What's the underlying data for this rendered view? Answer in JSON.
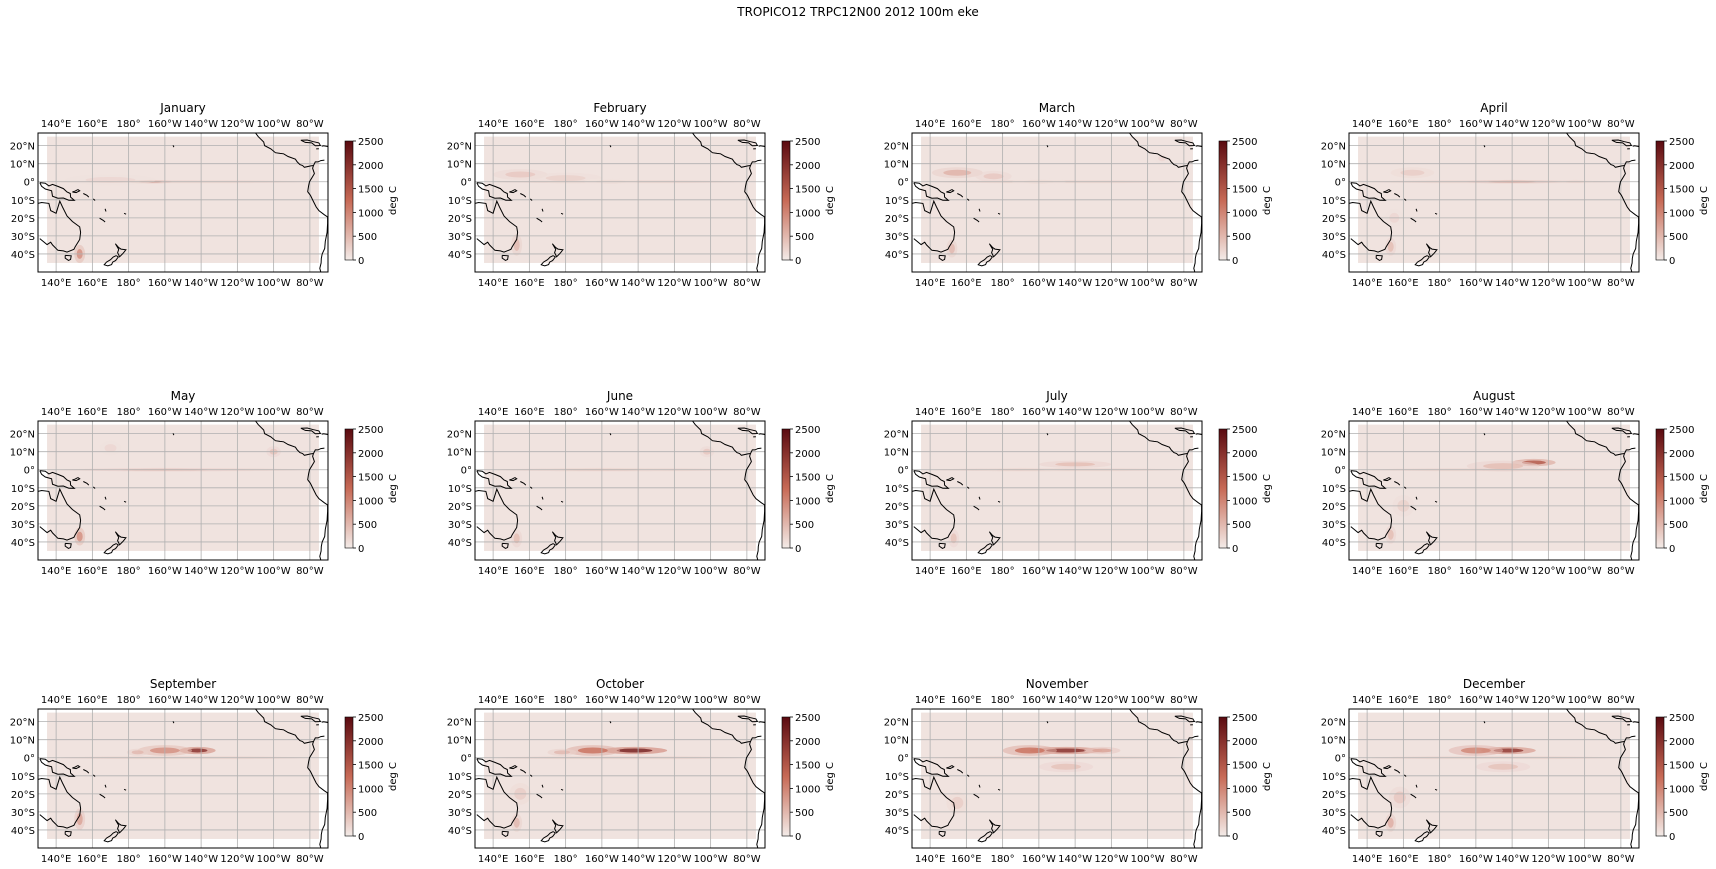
{
  "figure": {
    "suptitle": "TROPICO12 TRPC12N00 2012 100m eke"
  },
  "chart_data": {
    "type": "heatmap",
    "projection": "PlateCarree, central longitude 180",
    "lon_range": [
      130,
      290
    ],
    "lat_range": [
      -50,
      27
    ],
    "grid": true,
    "colormap": "white-to-dark-red (amp)",
    "colors": {
      "low": "#f3ebe8",
      "mid": "#c76a56",
      "high": "#5a0a10",
      "coast": "#000000",
      "grid": "#b0b0b0"
    },
    "top_tick_labels": [
      "140°E",
      "160°E",
      "180°",
      "160°W",
      "140°W",
      "120°W",
      "100°W",
      "80°W"
    ],
    "bottom_tick_labels": [
      "140°E",
      "160°E",
      "180°",
      "160°W",
      "140°W",
      "120°W",
      "100°W",
      "80°W"
    ],
    "lat_tick_labels": [
      "20°N",
      "10°N",
      "0°",
      "10°S",
      "20°S",
      "30°S",
      "40°S"
    ],
    "colorbar": {
      "label": "deg C",
      "min": 0,
      "max": 2500,
      "ticks": [
        "0",
        "500",
        "1000",
        "1500",
        "2000",
        "2500"
      ]
    },
    "panels": [
      {
        "title": "January",
        "blobs": [
          {
            "lon": 192,
            "lat": 0,
            "wlon": 12,
            "wlat": 1,
            "v": 700
          },
          {
            "lon": 170,
            "lat": 1,
            "wlon": 25,
            "wlat": 3,
            "v": 200
          },
          {
            "lon": 153,
            "lat": -40,
            "wlon": 3,
            "wlat": 5,
            "v": 900
          }
        ]
      },
      {
        "title": "February",
        "blobs": [
          {
            "lon": 155,
            "lat": 4,
            "wlon": 15,
            "wlat": 3,
            "v": 350
          },
          {
            "lon": 180,
            "lat": 2,
            "wlon": 20,
            "wlat": 3,
            "v": 250
          },
          {
            "lon": 205,
            "lat": 0,
            "wlon": 15,
            "wlat": 2,
            "v": 150
          },
          {
            "lon": 153,
            "lat": -35,
            "wlon": 3,
            "wlat": 6,
            "v": 500
          }
        ]
      },
      {
        "title": "March",
        "blobs": [
          {
            "lon": 155,
            "lat": 5,
            "wlon": 14,
            "wlat": 3,
            "v": 550
          },
          {
            "lon": 175,
            "lat": 3,
            "wlon": 10,
            "wlat": 3,
            "v": 350
          },
          {
            "lon": 200,
            "lat": 0,
            "wlon": 15,
            "wlat": 2,
            "v": 150
          },
          {
            "lon": 268,
            "lat": 13,
            "wlon": 4,
            "wlat": 3,
            "v": 200
          },
          {
            "lon": 152,
            "lat": -37,
            "wlon": 3,
            "wlat": 5,
            "v": 500
          }
        ]
      },
      {
        "title": "April",
        "blobs": [
          {
            "lon": 165,
            "lat": 5,
            "wlon": 12,
            "wlat": 3,
            "v": 300
          },
          {
            "lon": 220,
            "lat": 0,
            "wlon": 25,
            "wlat": 1,
            "v": 600
          },
          {
            "lon": 255,
            "lat": 0,
            "wlon": 10,
            "wlat": 1,
            "v": 250
          },
          {
            "lon": 155,
            "lat": -20,
            "wlon": 5,
            "wlat": 5,
            "v": 200
          },
          {
            "lon": 153,
            "lat": -36,
            "wlon": 3,
            "wlat": 5,
            "v": 450
          }
        ]
      },
      {
        "title": "May",
        "blobs": [
          {
            "lon": 200,
            "lat": 0,
            "wlon": 45,
            "wlat": 1,
            "v": 400
          },
          {
            "lon": 260,
            "lat": 10,
            "wlon": 4,
            "wlat": 3,
            "v": 400
          },
          {
            "lon": 170,
            "lat": 12,
            "wlon": 6,
            "wlat": 4,
            "v": 200
          },
          {
            "lon": 153,
            "lat": -37,
            "wlon": 3,
            "wlat": 5,
            "v": 900
          }
        ]
      },
      {
        "title": "June",
        "blobs": [
          {
            "lon": 200,
            "lat": 0,
            "wlon": 40,
            "wlat": 1,
            "v": 300
          },
          {
            "lon": 258,
            "lat": 10,
            "wlon": 4,
            "wlat": 3,
            "v": 350
          },
          {
            "lon": 153,
            "lat": -38,
            "wlon": 3,
            "wlat": 5,
            "v": 450
          }
        ]
      },
      {
        "title": "July",
        "blobs": [
          {
            "lon": 220,
            "lat": 3,
            "wlon": 20,
            "wlat": 2,
            "v": 450
          },
          {
            "lon": 190,
            "lat": 0,
            "wlon": 25,
            "wlat": 1,
            "v": 250
          },
          {
            "lon": 153,
            "lat": -38,
            "wlon": 3,
            "wlat": 5,
            "v": 400
          }
        ]
      },
      {
        "title": "August",
        "blobs": [
          {
            "lon": 232,
            "lat": 4,
            "wlon": 12,
            "wlat": 2,
            "v": 1500
          },
          {
            "lon": 215,
            "lat": 2,
            "wlon": 20,
            "wlat": 3,
            "v": 450
          },
          {
            "lon": 160,
            "lat": -20,
            "wlon": 6,
            "wlat": 6,
            "v": 250
          },
          {
            "lon": 153,
            "lat": -36,
            "wlon": 3,
            "wlat": 5,
            "v": 450
          }
        ]
      },
      {
        "title": "September",
        "blobs": [
          {
            "lon": 218,
            "lat": 4,
            "wlon": 10,
            "wlat": 2,
            "v": 2000
          },
          {
            "lon": 200,
            "lat": 4,
            "wlon": 15,
            "wlat": 3,
            "v": 900
          },
          {
            "lon": 185,
            "lat": 3,
            "wlon": 6,
            "wlat": 2,
            "v": 500
          },
          {
            "lon": 153,
            "lat": -34,
            "wlon": 3,
            "wlat": 6,
            "v": 700
          }
        ]
      },
      {
        "title": "October",
        "blobs": [
          {
            "lon": 218,
            "lat": 4,
            "wlon": 18,
            "wlat": 2,
            "v": 2200
          },
          {
            "lon": 195,
            "lat": 4,
            "wlon": 15,
            "wlat": 3,
            "v": 1200
          },
          {
            "lon": 178,
            "lat": 3,
            "wlon": 8,
            "wlat": 2,
            "v": 500
          },
          {
            "lon": 155,
            "lat": -20,
            "wlon": 6,
            "wlat": 6,
            "v": 300
          },
          {
            "lon": 153,
            "lat": -36,
            "wlon": 3,
            "wlat": 5,
            "v": 500
          }
        ]
      },
      {
        "title": "November",
        "blobs": [
          {
            "lon": 215,
            "lat": 4,
            "wlon": 20,
            "wlat": 2,
            "v": 2000
          },
          {
            "lon": 195,
            "lat": 4,
            "wlon": 15,
            "wlat": 3,
            "v": 1200
          },
          {
            "lon": 235,
            "lat": 4,
            "wlon": 10,
            "wlat": 2,
            "v": 700
          },
          {
            "lon": 215,
            "lat": -5,
            "wlon": 15,
            "wlat": 3,
            "v": 400
          },
          {
            "lon": 155,
            "lat": -25,
            "wlon": 6,
            "wlat": 6,
            "v": 300
          }
        ]
      },
      {
        "title": "December",
        "blobs": [
          {
            "lon": 218,
            "lat": 4,
            "wlon": 15,
            "wlat": 2,
            "v": 1900
          },
          {
            "lon": 200,
            "lat": 4,
            "wlon": 15,
            "wlat": 3,
            "v": 1000
          },
          {
            "lon": 215,
            "lat": -5,
            "wlon": 15,
            "wlat": 3,
            "v": 400
          },
          {
            "lon": 158,
            "lat": -22,
            "wlon": 6,
            "wlat": 6,
            "v": 350
          },
          {
            "lon": 153,
            "lat": -36,
            "wlon": 3,
            "wlat": 5,
            "v": 600
          }
        ]
      }
    ]
  }
}
